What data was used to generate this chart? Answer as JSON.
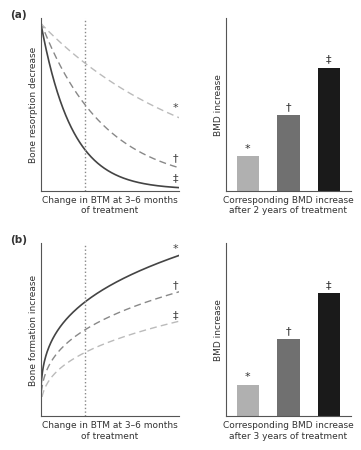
{
  "panel_a_label": "(a)",
  "panel_b_label": "(b)",
  "panel_a_ylabel": "Bone resorption decrease",
  "panel_b_ylabel": "Bone formation increase",
  "panel_a_xlabel": "Change in BTM at 3–6 months\nof treatment",
  "panel_b_xlabel": "Change in BTM at 3–6 months\nof treatment",
  "bar_a_xlabel": "Corresponding BMD increase\nafter 2 years of treatment",
  "bar_b_xlabel": "Corresponding BMD increase\nafter 3 years of treatment",
  "bar_ylabel": "BMD increase",
  "bar_a_values": [
    0.22,
    0.48,
    0.78
  ],
  "bar_b_values": [
    0.18,
    0.44,
    0.7
  ],
  "bar_colors": [
    "#b0b0b0",
    "#707070",
    "#1a1a1a"
  ],
  "bar_symbols": [
    "*",
    "†",
    "‡"
  ],
  "background_color": "#ffffff",
  "font_size": 6.5,
  "symbol_font_size": 8
}
